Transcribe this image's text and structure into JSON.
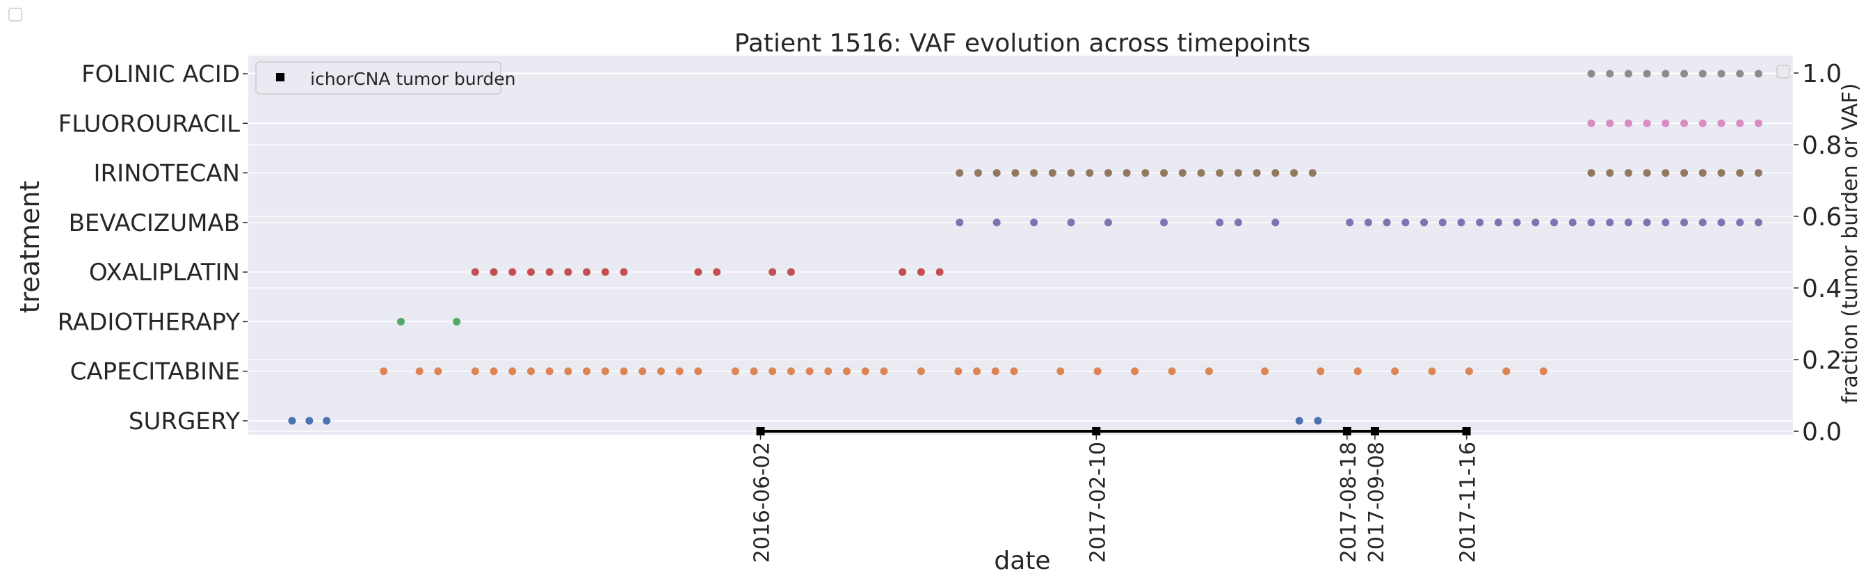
{
  "chart_data": {
    "type": "scatter",
    "title": "Patient 1516: VAF evolution across timepoints",
    "xlabel": "date",
    "ylabel_left": "treatment",
    "ylabel_right": "fraction (tumor burden or VAF)",
    "right_ylim": [
      0.0,
      1.0
    ],
    "right_yticks": [
      "0.0",
      "0.2",
      "0.4",
      "0.6",
      "0.8",
      "1.0"
    ],
    "grid": true,
    "legend": {
      "placement": "top-left",
      "label": "ichorCNA tumor burden"
    },
    "treatments": [
      {
        "name": "SURGERY",
        "color": "#4c72b0",
        "dates": [
          "2015-06-15",
          "2015-06-28",
          "2015-07-11",
          "2017-07-13",
          "2017-07-27"
        ]
      },
      {
        "name": "CAPECITABINE",
        "color": "#dd8452",
        "dates": [
          "2015-08-23",
          "2015-09-19",
          "2015-10-03",
          "2015-10-31",
          "2015-11-14",
          "2015-11-28",
          "2015-12-12",
          "2015-12-26",
          "2016-01-09",
          "2016-01-23",
          "2016-02-06",
          "2016-02-20",
          "2016-03-05",
          "2016-03-19",
          "2016-04-02",
          "2016-04-16",
          "2016-05-14",
          "2016-05-28",
          "2016-06-11",
          "2016-06-25",
          "2016-07-09",
          "2016-07-23",
          "2016-08-06",
          "2016-08-20",
          "2016-09-03",
          "2016-10-01",
          "2016-10-29",
          "2016-11-12",
          "2016-11-26",
          "2016-12-10",
          "2017-01-14",
          "2017-02-11",
          "2017-03-11",
          "2017-04-08",
          "2017-05-06",
          "2017-06-17",
          "2017-07-29",
          "2017-08-26",
          "2017-09-23",
          "2017-10-21",
          "2017-11-18",
          "2017-12-16",
          "2018-01-13"
        ]
      },
      {
        "name": "RADIOTHERAPY",
        "color": "#55a868",
        "dates": [
          "2015-09-05",
          "2015-10-17"
        ]
      },
      {
        "name": "OXALIPLATIN",
        "color": "#c44e52",
        "dates": [
          "2015-10-31",
          "2015-11-14",
          "2015-11-28",
          "2015-12-12",
          "2015-12-26",
          "2016-01-09",
          "2016-01-23",
          "2016-02-06",
          "2016-02-20",
          "2016-04-16",
          "2016-04-30",
          "2016-06-11",
          "2016-06-25",
          "2016-09-17",
          "2016-10-01",
          "2016-10-15"
        ]
      },
      {
        "name": "BEVACIZUMAB",
        "color": "#8172b2",
        "dates": [
          "2016-10-30",
          "2016-11-27",
          "2016-12-25",
          "2017-01-22",
          "2017-02-19",
          "2017-04-02",
          "2017-05-14",
          "2017-05-28",
          "2017-06-25",
          "2017-08-20",
          "2017-09-03",
          "2017-09-17",
          "2017-10-01",
          "2017-10-15",
          "2017-10-29",
          "2017-11-12",
          "2017-11-26",
          "2017-12-10",
          "2017-12-24",
          "2018-01-07",
          "2018-01-21",
          "2018-02-04",
          "2018-02-18",
          "2018-03-04",
          "2018-03-18",
          "2018-04-01",
          "2018-04-15",
          "2018-04-29",
          "2018-05-13",
          "2018-05-27",
          "2018-06-10",
          "2018-06-24"
        ]
      },
      {
        "name": "IRINOTECAN",
        "color": "#937860",
        "dates": [
          "2016-10-30",
          "2016-11-13",
          "2016-11-27",
          "2016-12-11",
          "2016-12-25",
          "2017-01-08",
          "2017-01-22",
          "2017-02-05",
          "2017-02-19",
          "2017-03-05",
          "2017-03-19",
          "2017-04-02",
          "2017-04-16",
          "2017-04-30",
          "2017-05-14",
          "2017-05-28",
          "2017-06-11",
          "2017-06-25",
          "2017-07-09",
          "2017-07-23",
          "2018-02-18",
          "2018-03-04",
          "2018-03-18",
          "2018-04-01",
          "2018-04-15",
          "2018-04-29",
          "2018-05-13",
          "2018-05-27",
          "2018-06-10",
          "2018-06-24"
        ]
      },
      {
        "name": "FLUOROURACIL",
        "color": "#da8bc3",
        "dates": [
          "2018-02-18",
          "2018-03-04",
          "2018-03-18",
          "2018-04-01",
          "2018-04-15",
          "2018-04-29",
          "2018-05-13",
          "2018-05-27",
          "2018-06-10",
          "2018-06-24"
        ]
      },
      {
        "name": "FOLINIC ACID",
        "color": "#8c8c8c",
        "dates": [
          "2018-02-18",
          "2018-03-04",
          "2018-03-18",
          "2018-04-01",
          "2018-04-15",
          "2018-04-29",
          "2018-05-13",
          "2018-05-27",
          "2018-06-10",
          "2018-06-24"
        ]
      }
    ],
    "tumor_burden": {
      "name": "ichorCNA tumor burden",
      "color": "#000000",
      "x": [
        "2016-06-02",
        "2017-02-10",
        "2017-08-18",
        "2017-09-08",
        "2017-11-16"
      ],
      "values": [
        0.0,
        0.0,
        0.0,
        0.0,
        0.0
      ]
    },
    "xticks": [
      "2016-06-02",
      "2017-02-10",
      "2017-08-18",
      "2017-09-08",
      "2017-11-16"
    ]
  }
}
